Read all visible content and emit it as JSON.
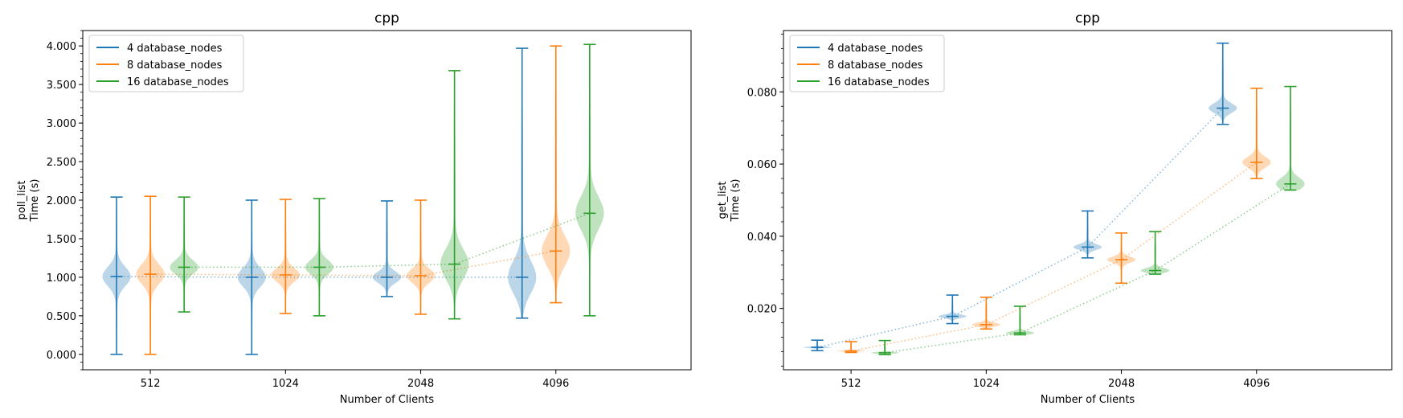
{
  "chart_data": [
    {
      "type": "violin",
      "title": "cpp",
      "xlabel": "Number of Clients",
      "ylabel_lines": [
        "poll_list",
        "Time (s)"
      ],
      "categories": [
        "512",
        "1024",
        "2048",
        "4096"
      ],
      "ylim": [
        -0.2,
        4.2
      ],
      "yticks": [
        0,
        0.5,
        1,
        1.5,
        2,
        2.5,
        3,
        3.5,
        4
      ],
      "ytick_labels": [
        "0.000",
        "0.500",
        "1.000",
        "1.500",
        "2.000",
        "2.500",
        "3.000",
        "3.500",
        "4.000"
      ],
      "legend_position": "top-left",
      "grid": false,
      "series": [
        {
          "name": "4 database_nodes",
          "color": "#1f77b4",
          "stats": [
            {
              "min": 0.0,
              "max": 2.04,
              "median": 1.01
            },
            {
              "min": 0.0,
              "max": 2.0,
              "median": 1.0
            },
            {
              "min": 0.75,
              "max": 1.99,
              "median": 1.0
            },
            {
              "min": 0.47,
              "max": 3.97,
              "median": 1.0
            }
          ]
        },
        {
          "name": "8 database_nodes",
          "color": "#ff7f0e",
          "stats": [
            {
              "min": 0.0,
              "max": 2.05,
              "median": 1.04
            },
            {
              "min": 0.53,
              "max": 2.01,
              "median": 1.03
            },
            {
              "min": 0.52,
              "max": 2.0,
              "median": 1.02
            },
            {
              "min": 0.67,
              "max": 4.0,
              "median": 1.34
            }
          ]
        },
        {
          "name": "16 database_nodes",
          "color": "#2ca02c",
          "stats": [
            {
              "min": 0.55,
              "max": 2.04,
              "median": 1.13
            },
            {
              "min": 0.5,
              "max": 2.02,
              "median": 1.13
            },
            {
              "min": 0.46,
              "max": 3.68,
              "median": 1.17
            },
            {
              "min": 0.5,
              "max": 4.02,
              "median": 1.83
            }
          ]
        }
      ]
    },
    {
      "type": "violin",
      "title": "cpp",
      "xlabel": "Number of Clients",
      "ylabel_lines": [
        "get_list",
        "Time (s)"
      ],
      "categories": [
        "512",
        "1024",
        "2048",
        "4096"
      ],
      "ylim": [
        0.003,
        0.097
      ],
      "yticks": [
        0.02,
        0.04,
        0.06,
        0.08
      ],
      "ytick_labels": [
        "0.020",
        "0.040",
        "0.060",
        "0.080"
      ],
      "legend_position": "top-left",
      "grid": false,
      "series": [
        {
          "name": "4 database_nodes",
          "color": "#1f77b4",
          "stats": [
            {
              "min": 0.0083,
              "max": 0.0112,
              "median": 0.0092
            },
            {
              "min": 0.0158,
              "max": 0.0237,
              "median": 0.0178
            },
            {
              "min": 0.034,
              "max": 0.047,
              "median": 0.037
            },
            {
              "min": 0.071,
              "max": 0.0935,
              "median": 0.0755
            }
          ]
        },
        {
          "name": "8 database_nodes",
          "color": "#ff7f0e",
          "stats": [
            {
              "min": 0.0078,
              "max": 0.0108,
              "median": 0.0082
            },
            {
              "min": 0.0143,
              "max": 0.0231,
              "median": 0.0155
            },
            {
              "min": 0.027,
              "max": 0.0409,
              "median": 0.0335
            },
            {
              "min": 0.056,
              "max": 0.081,
              "median": 0.0605
            }
          ]
        },
        {
          "name": "16 database_nodes",
          "color": "#2ca02c",
          "stats": [
            {
              "min": 0.0072,
              "max": 0.0111,
              "median": 0.0077
            },
            {
              "min": 0.0127,
              "max": 0.0206,
              "median": 0.0132
            },
            {
              "min": 0.0295,
              "max": 0.0413,
              "median": 0.0305
            },
            {
              "min": 0.0528,
              "max": 0.0815,
              "median": 0.0545
            }
          ]
        }
      ]
    }
  ]
}
